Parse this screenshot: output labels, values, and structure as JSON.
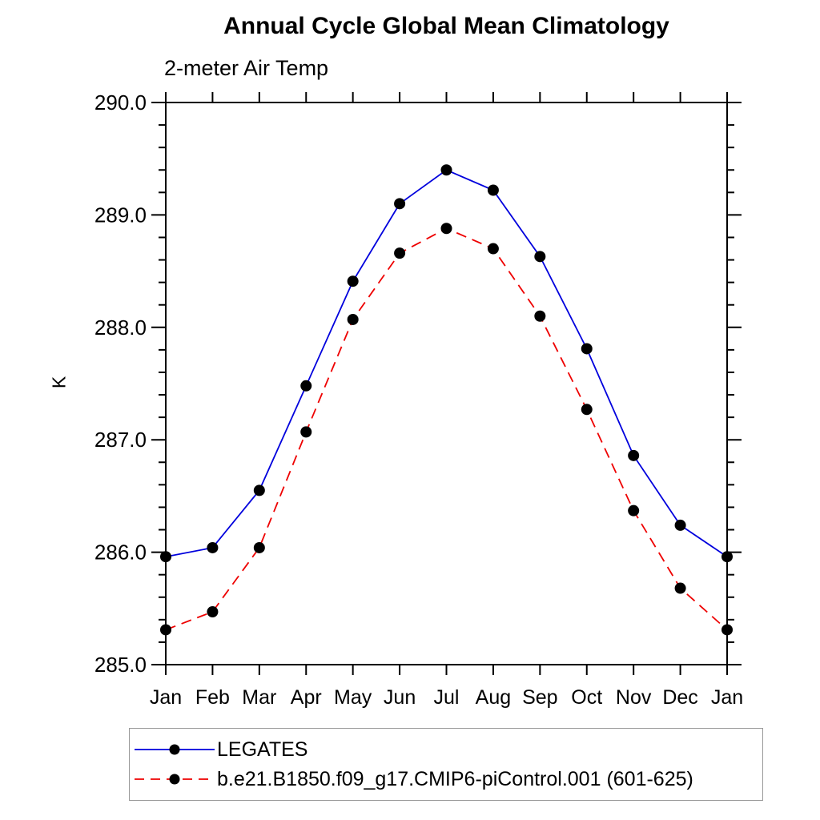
{
  "page": {
    "background": "#ffffff",
    "axis_color": "#000000",
    "legend_border_color": "#999999"
  },
  "chart_data": {
    "type": "line",
    "title": "Annual Cycle Global Mean Climatology",
    "subtitle": "2-meter Air Temp",
    "ylabel": "K",
    "xlabel": "",
    "categories": [
      "Jan",
      "Feb",
      "Mar",
      "Apr",
      "May",
      "Jun",
      "Jul",
      "Aug",
      "Sep",
      "Oct",
      "Nov",
      "Dec",
      "Jan"
    ],
    "ylim": [
      285.0,
      290.0
    ],
    "y_major_tick_labels": [
      "285.0",
      "286.0",
      "287.0",
      "288.0",
      "289.0",
      "290.0"
    ],
    "y_minor_step": 0.2,
    "grid": false,
    "legend_position": "bottom-left",
    "marker": "filled-circle",
    "marker_color": "#000000",
    "series": [
      {
        "name": "LEGATES",
        "color": "#0000dd",
        "style": "solid",
        "values": [
          285.96,
          286.04,
          286.55,
          287.48,
          288.41,
          289.1,
          289.4,
          289.22,
          288.63,
          287.81,
          286.86,
          286.24,
          285.96
        ]
      },
      {
        "name": "b.e21.B1850.f09_g17.CMIP6-piControl.001 (601-625)",
        "color": "#ee0000",
        "style": "dashed",
        "values": [
          285.31,
          285.47,
          286.04,
          287.07,
          288.07,
          288.66,
          288.88,
          288.7,
          288.1,
          287.27,
          286.37,
          285.68,
          285.31
        ]
      }
    ]
  }
}
